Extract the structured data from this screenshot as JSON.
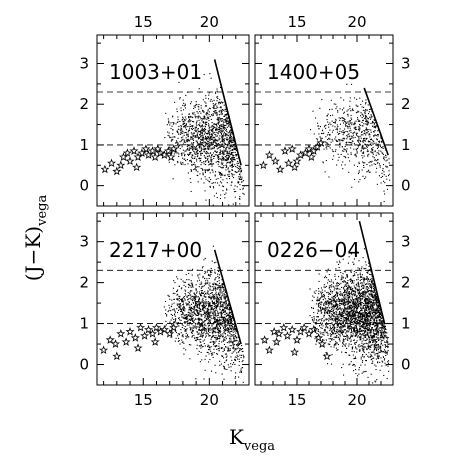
{
  "chart_data": {
    "type": "scatter",
    "xlabel": "K",
    "xlabel_sub": "vega",
    "ylabel": "(J−K)",
    "ylabel_sub": "vega",
    "xlim": [
      11.5,
      23
    ],
    "ylim": [
      -0.5,
      3.7
    ],
    "x_ticks": [
      15,
      20
    ],
    "y_ticks": [
      0,
      1,
      2,
      3
    ],
    "hline_dashed_top": 2.3,
    "hline_dashed_bottom": 1.0,
    "panels": [
      {
        "label": "1003+01",
        "stars": [
          [
            12.1,
            0.4
          ],
          [
            12.6,
            0.55
          ],
          [
            13.0,
            0.35
          ],
          [
            13.3,
            0.5
          ],
          [
            13.8,
            0.8
          ],
          [
            14.0,
            0.6
          ],
          [
            14.3,
            0.85
          ],
          [
            14.6,
            0.7
          ],
          [
            14.9,
            0.8
          ],
          [
            15.2,
            0.9
          ],
          [
            15.4,
            0.75
          ],
          [
            15.7,
            0.85
          ],
          [
            15.9,
            0.7
          ],
          [
            16.1,
            0.9
          ],
          [
            16.3,
            0.8
          ],
          [
            16.6,
            0.75
          ],
          [
            16.9,
            0.85
          ],
          [
            17.1,
            0.7
          ],
          [
            17.3,
            0.9
          ],
          [
            14.5,
            0.45
          ],
          [
            13.5,
            0.7
          ]
        ],
        "edge_line": [
          [
            20.4,
            3.1
          ],
          [
            22.4,
            0.5
          ]
        ],
        "cloud": {
          "n": 1500,
          "x_min": 16.5,
          "x_max": 22.6,
          "y_center": 1.2,
          "y_spread": 0.55,
          "edge_x0": 20.4,
          "edge_y0": 3.1,
          "edge_slope": -1.3
        }
      },
      {
        "label": "1400+05",
        "stars": [
          [
            12.2,
            0.5
          ],
          [
            12.7,
            0.75
          ],
          [
            13.2,
            0.6
          ],
          [
            13.6,
            0.4
          ],
          [
            14.0,
            0.85
          ],
          [
            14.3,
            0.55
          ],
          [
            14.6,
            0.9
          ],
          [
            15.0,
            0.6
          ],
          [
            15.3,
            0.75
          ],
          [
            15.7,
            0.8
          ],
          [
            16.0,
            0.9
          ],
          [
            16.4,
            0.85
          ],
          [
            16.7,
            0.95
          ],
          [
            17.0,
            1.05
          ],
          [
            14.8,
            0.45
          ],
          [
            16.2,
            0.7
          ]
        ],
        "edge_line": [
          [
            20.6,
            2.4
          ],
          [
            22.6,
            0.75
          ]
        ],
        "cloud": {
          "n": 650,
          "x_min": 16.0,
          "x_max": 22.7,
          "y_center": 1.3,
          "y_spread": 0.5,
          "edge_x0": 20.6,
          "edge_y0": 2.4,
          "edge_slope": -0.85
        }
      },
      {
        "label": "2217+00",
        "stars": [
          [
            12.0,
            0.35
          ],
          [
            12.5,
            0.6
          ],
          [
            12.9,
            0.5
          ],
          [
            13.3,
            0.75
          ],
          [
            13.7,
            0.55
          ],
          [
            14.0,
            0.8
          ],
          [
            14.4,
            0.65
          ],
          [
            14.8,
            0.9
          ],
          [
            15.1,
            0.7
          ],
          [
            15.4,
            0.85
          ],
          [
            15.7,
            0.75
          ],
          [
            16.0,
            0.9
          ],
          [
            16.3,
            0.8
          ],
          [
            16.6,
            0.85
          ],
          [
            17.0,
            0.75
          ],
          [
            17.3,
            0.9
          ],
          [
            13.0,
            0.2
          ],
          [
            14.6,
            0.4
          ],
          [
            15.9,
            0.55
          ]
        ],
        "edge_line": [
          [
            20.4,
            2.8
          ],
          [
            22.4,
            0.5
          ]
        ],
        "cloud": {
          "n": 1700,
          "x_min": 16.5,
          "x_max": 22.6,
          "y_center": 1.25,
          "y_spread": 0.55,
          "edge_x0": 20.4,
          "edge_y0": 2.8,
          "edge_slope": -1.15
        }
      },
      {
        "label": "0226−04",
        "stars": [
          [
            12.3,
            0.6
          ],
          [
            12.7,
            0.35
          ],
          [
            13.1,
            0.8
          ],
          [
            13.5,
            0.75
          ],
          [
            13.9,
            0.9
          ],
          [
            14.2,
            0.7
          ],
          [
            14.6,
            0.85
          ],
          [
            15.0,
            0.6
          ],
          [
            15.3,
            0.8
          ],
          [
            15.6,
            0.9
          ],
          [
            16.0,
            0.75
          ],
          [
            16.4,
            0.85
          ],
          [
            16.8,
            0.65
          ],
          [
            17.1,
            0.5
          ],
          [
            17.5,
            0.2
          ],
          [
            13.3,
            0.55
          ],
          [
            14.8,
            0.3
          ]
        ],
        "edge_line": [
          [
            20.2,
            3.5
          ],
          [
            22.3,
            1.0
          ]
        ],
        "cloud": {
          "n": 2600,
          "x_min": 16.0,
          "x_max": 22.6,
          "y_center": 1.3,
          "y_spread": 0.55,
          "edge_x0": 20.2,
          "edge_y0": 3.5,
          "edge_slope": -1.2
        }
      }
    ]
  }
}
